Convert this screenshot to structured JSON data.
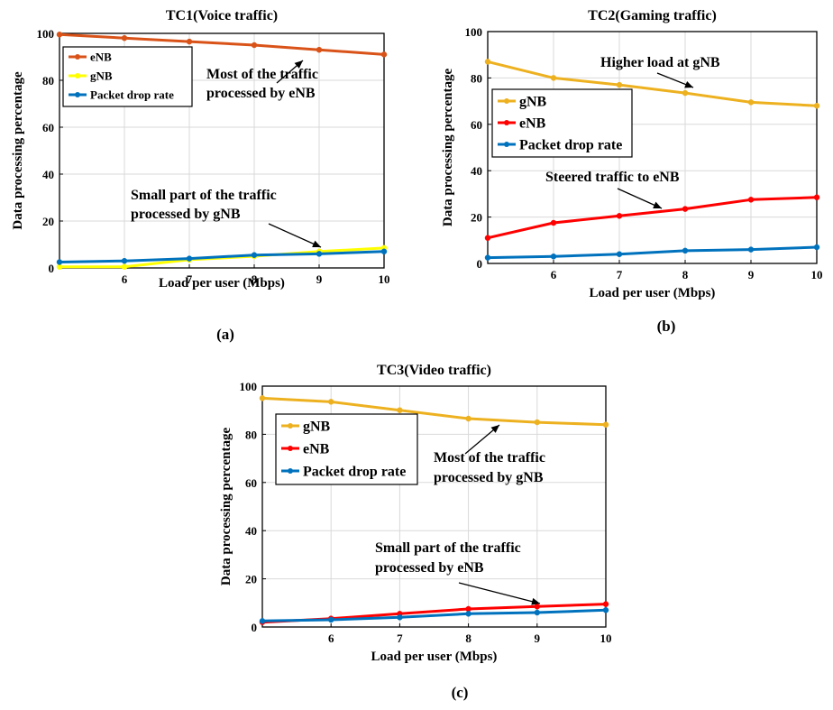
{
  "chart_data": [
    {
      "type": "line",
      "title": "TC1(Voice traffic)",
      "xlabel": "Load per user (Mbps)",
      "ylabel": "Data processing percentage",
      "panel_label": "(a)",
      "xlim": [
        5,
        10
      ],
      "ylim": [
        0,
        100
      ],
      "x_ticks": [
        6,
        7,
        8,
        9,
        10
      ],
      "y_ticks": [
        0,
        20,
        40,
        60,
        80,
        100
      ],
      "grid": true,
      "legend_position": "top-left",
      "x": [
        5,
        6,
        7,
        8,
        9,
        10
      ],
      "series": [
        {
          "name": "eNB",
          "color": "#d95319",
          "values": [
            99.5,
            98,
            96.5,
            95,
            93,
            91
          ]
        },
        {
          "name": "gNB",
          "color": "#ffff00",
          "values": [
            0.5,
            0.5,
            3.5,
            5,
            7,
            8.5
          ]
        },
        {
          "name": "Packet drop rate",
          "color": "#0072bd",
          "values": [
            2.5,
            3,
            4,
            5.5,
            6,
            7
          ]
        }
      ],
      "annotations": [
        {
          "lines": [
            "Most of the traffic",
            "processed by eNB"
          ]
        },
        {
          "lines": [
            "Small part of the traffic",
            "processed by gNB"
          ]
        }
      ]
    },
    {
      "type": "line",
      "title": "TC2(Gaming traffic)",
      "xlabel": "Load per user (Mbps)",
      "ylabel": "Data processing percentage",
      "panel_label": "(b)",
      "xlim": [
        5,
        10
      ],
      "ylim": [
        0,
        100
      ],
      "x_ticks": [
        6,
        7,
        8,
        9,
        10
      ],
      "y_ticks": [
        0,
        20,
        40,
        60,
        80,
        100
      ],
      "grid": true,
      "legend_position": "top-left",
      "x": [
        5,
        6,
        7,
        8,
        9,
        10
      ],
      "series": [
        {
          "name": "gNB",
          "color": "#edb120",
          "values": [
            87,
            80,
            77,
            73.5,
            69.5,
            68
          ]
        },
        {
          "name": "eNB",
          "color": "#ff0000",
          "values": [
            11,
            17.5,
            20.5,
            23.5,
            27.5,
            28.5
          ]
        },
        {
          "name": "Packet drop rate",
          "color": "#0072bd",
          "values": [
            2.5,
            3,
            4,
            5.5,
            6,
            7
          ]
        }
      ],
      "annotations": [
        {
          "lines": [
            "Higher load at gNB"
          ]
        },
        {
          "lines": [
            "Steered traffic to eNB"
          ]
        }
      ]
    },
    {
      "type": "line",
      "title": "TC3(Video traffic)",
      "xlabel": "Load per user (Mbps)",
      "ylabel": "Data processing percentage",
      "panel_label": "(c)",
      "xlim": [
        5,
        10
      ],
      "ylim": [
        0,
        100
      ],
      "x_ticks": [
        6,
        7,
        8,
        9,
        10
      ],
      "y_ticks": [
        0,
        20,
        40,
        60,
        80,
        100
      ],
      "grid": true,
      "legend_position": "top-left",
      "x": [
        5,
        6,
        7,
        8,
        9,
        10
      ],
      "series": [
        {
          "name": "gNB",
          "color": "#edb120",
          "values": [
            95,
            93.5,
            90,
            86.5,
            85,
            84
          ]
        },
        {
          "name": "eNB",
          "color": "#ff0000",
          "values": [
            2,
            3.5,
            5.5,
            7.5,
            8.5,
            9.5
          ]
        },
        {
          "name": "Packet drop rate",
          "color": "#0072bd",
          "values": [
            2.5,
            3,
            4,
            5.5,
            6,
            7
          ]
        }
      ],
      "annotations": [
        {
          "lines": [
            "Most of the traffic",
            "processed by gNB"
          ]
        },
        {
          "lines": [
            "Small part of the traffic",
            "processed by eNB"
          ]
        }
      ]
    }
  ]
}
